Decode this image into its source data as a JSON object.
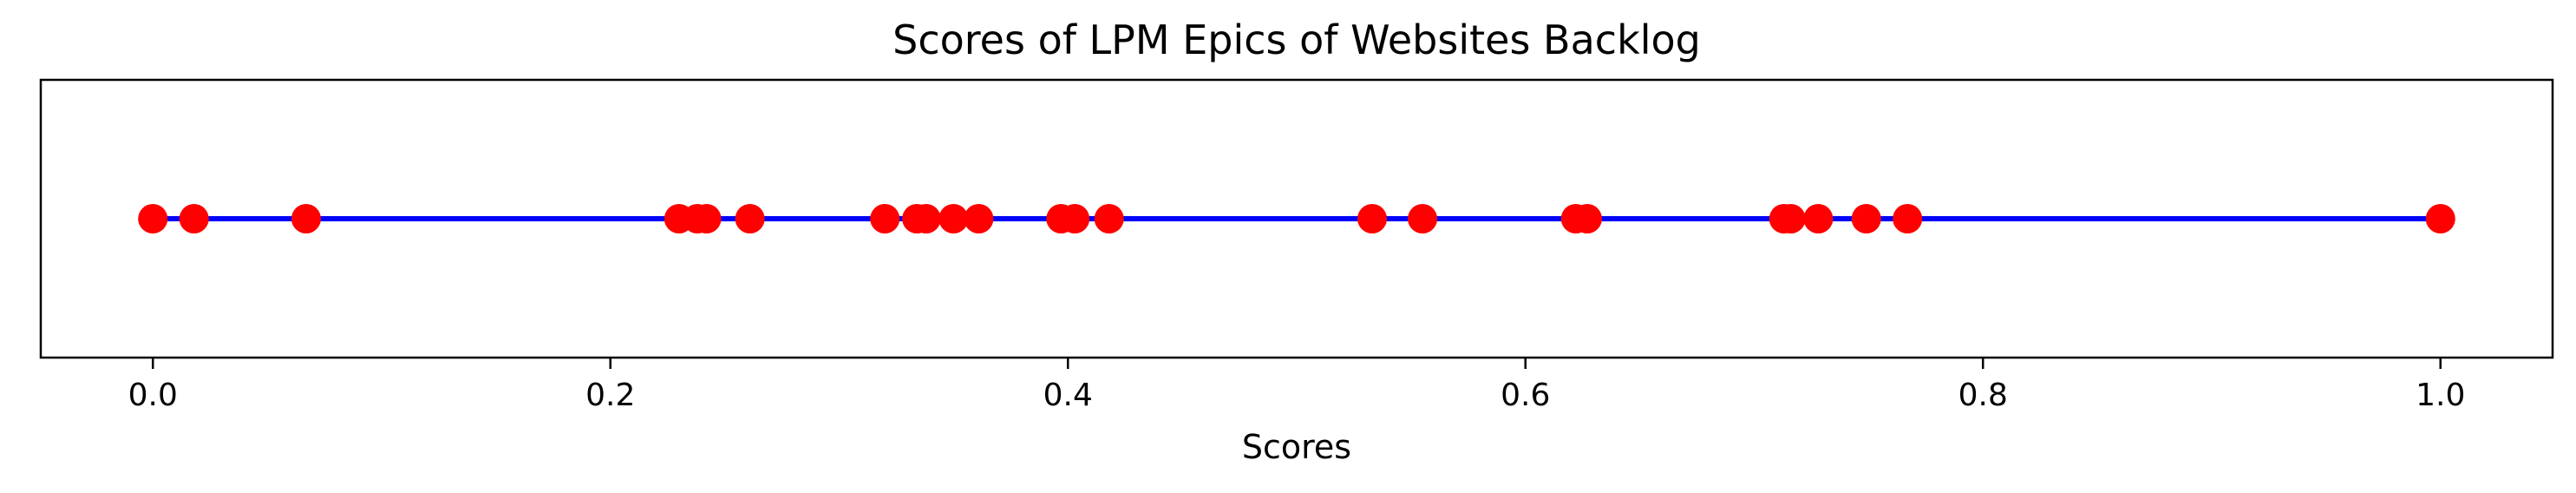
{
  "chart_data": {
    "type": "scatter",
    "title": "Scores of LPM Epics of Websites Backlog",
    "xlabel": "Scores",
    "ylabel": "",
    "xlim": [
      -0.049,
      1.049
    ],
    "ylim": [
      -1,
      1
    ],
    "grid": false,
    "legend": "none",
    "xticks": [
      0.0,
      0.2,
      0.4,
      0.6,
      0.8,
      1.0
    ],
    "xtick_labels": [
      "0.0",
      "0.2",
      "0.4",
      "0.6",
      "0.8",
      "1.0"
    ],
    "series": [
      {
        "kind": "line",
        "x": [
          0.0,
          1.0
        ],
        "y": [
          0,
          0
        ],
        "color": "#0000ff"
      },
      {
        "kind": "points",
        "x": [
          0.0,
          0.018,
          0.067,
          0.23,
          0.238,
          0.242,
          0.261,
          0.32,
          0.334,
          0.338,
          0.35,
          0.361,
          0.397,
          0.403,
          0.418,
          0.533,
          0.555,
          0.622,
          0.627,
          0.713,
          0.716,
          0.728,
          0.749,
          0.767,
          1.0
        ],
        "y": [
          0,
          0,
          0,
          0,
          0,
          0,
          0,
          0,
          0,
          0,
          0,
          0,
          0,
          0,
          0,
          0,
          0,
          0,
          0,
          0,
          0,
          0,
          0,
          0,
          0
        ],
        "color": "#ff0000"
      }
    ]
  }
}
